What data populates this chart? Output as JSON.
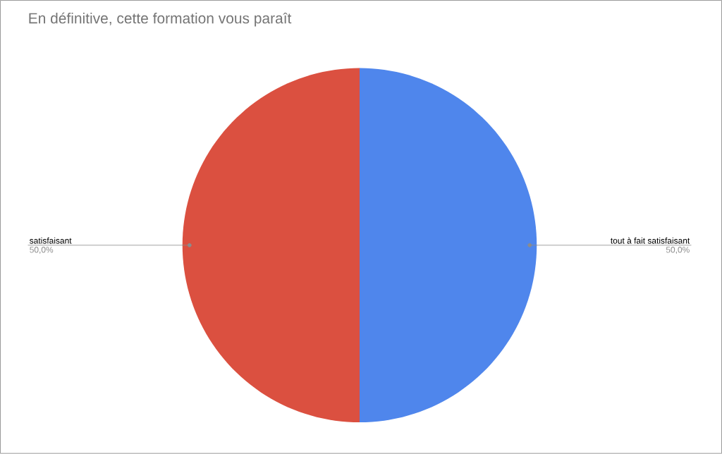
{
  "chart_data": {
    "type": "pie",
    "title": "En définitive, cette formation vous paraît",
    "categories": [
      "tout à fait satisfaisant",
      "satisfaisant"
    ],
    "values": [
      50,
      50
    ],
    "colors": [
      "#4f86ec",
      "#db5040"
    ],
    "value_labels": [
      "50,0%",
      "50,0%"
    ]
  }
}
